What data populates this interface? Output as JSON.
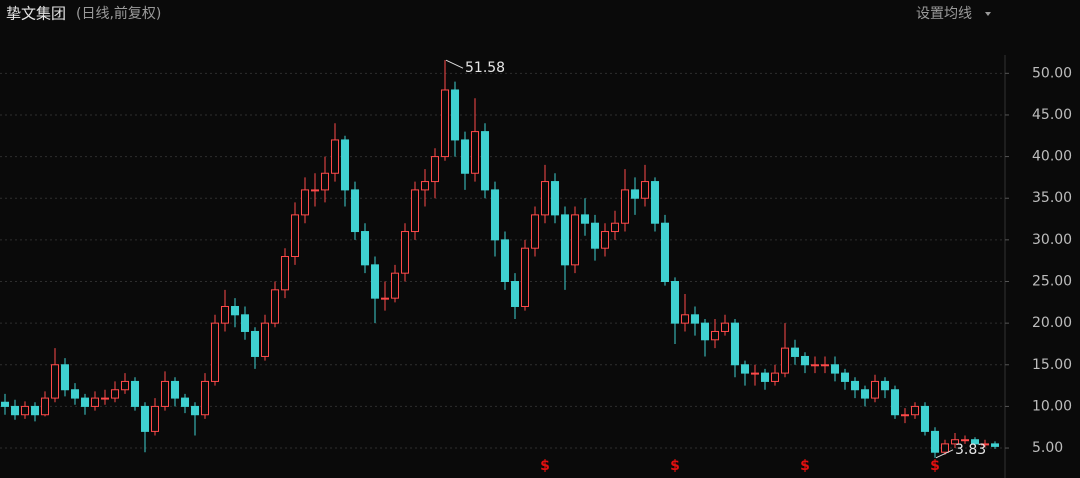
{
  "chart_data": {
    "type": "candlestick",
    "title": "挚文集团",
    "subtitle": "(日线,前复权)",
    "settings_button": "设置均线",
    "up_color": "#ff4a4a",
    "down_color": "#3fd0d0",
    "grid": true,
    "ylim": [
      3,
      52.2
    ],
    "yticks": [
      {
        "value": 5,
        "label": "5.00"
      },
      {
        "value": 10,
        "label": "10.00"
      },
      {
        "value": 15,
        "label": "15.00"
      },
      {
        "value": 20,
        "label": "20.00"
      },
      {
        "value": 25,
        "label": "25.00"
      },
      {
        "value": 30,
        "label": "30.00"
      },
      {
        "value": 35,
        "label": "35.00"
      },
      {
        "value": 40,
        "label": "40.00"
      },
      {
        "value": 45,
        "label": "45.00"
      },
      {
        "value": 50,
        "label": "50.00"
      }
    ],
    "candles": [
      [
        10.5,
        11.5,
        9,
        10
      ],
      [
        10,
        10.8,
        8.4,
        9
      ],
      [
        9,
        10.6,
        8.5,
        10
      ],
      [
        10,
        10.5,
        8.2,
        9
      ],
      [
        9,
        11.8,
        8.8,
        11
      ],
      [
        11,
        17,
        10.5,
        15
      ],
      [
        15,
        15.8,
        11.2,
        12
      ],
      [
        12,
        12.8,
        10.2,
        11
      ],
      [
        11,
        11.5,
        9,
        10
      ],
      [
        10,
        11.8,
        9.5,
        11
      ],
      [
        11,
        12,
        10.2,
        11
      ],
      [
        11,
        13,
        10.5,
        12
      ],
      [
        12,
        14,
        11.5,
        13
      ],
      [
        13,
        13.5,
        9.5,
        10
      ],
      [
        10,
        10.5,
        4.5,
        7
      ],
      [
        7,
        11,
        6.5,
        10
      ],
      [
        10,
        14.2,
        9.5,
        13
      ],
      [
        13,
        13.5,
        10,
        11
      ],
      [
        11,
        11.5,
        9.2,
        10
      ],
      [
        10,
        10.5,
        6.5,
        9
      ],
      [
        9,
        14,
        8.5,
        13
      ],
      [
        13,
        21,
        12.5,
        20
      ],
      [
        20,
        24,
        19,
        22
      ],
      [
        22,
        23,
        19.5,
        21
      ],
      [
        21,
        22,
        18,
        19
      ],
      [
        19,
        19.5,
        14.5,
        16
      ],
      [
        16,
        21,
        15.5,
        20
      ],
      [
        20,
        25,
        19.5,
        24
      ],
      [
        24,
        29,
        23,
        28
      ],
      [
        28,
        34.5,
        27,
        33
      ],
      [
        33,
        37.5,
        32,
        36
      ],
      [
        36,
        38,
        34,
        36
      ],
      [
        36,
        40,
        34.5,
        38
      ],
      [
        38,
        44,
        37,
        42
      ],
      [
        42,
        42.5,
        34,
        36
      ],
      [
        36,
        37,
        30,
        31
      ],
      [
        31,
        32,
        26,
        27
      ],
      [
        27,
        28,
        20,
        23
      ],
      [
        23,
        25,
        21.5,
        23
      ],
      [
        23,
        27,
        22.5,
        26
      ],
      [
        26,
        32,
        25,
        31
      ],
      [
        31,
        37,
        30,
        36
      ],
      [
        36,
        38.5,
        34,
        37
      ],
      [
        37,
        41,
        35,
        40
      ],
      [
        40,
        51.58,
        39.5,
        48
      ],
      [
        48,
        49,
        40,
        42
      ],
      [
        42,
        43,
        36,
        38
      ],
      [
        38,
        47,
        37,
        43
      ],
      [
        43,
        44,
        35,
        36
      ],
      [
        36,
        37,
        28,
        30
      ],
      [
        30,
        31,
        24,
        25
      ],
      [
        25,
        26,
        20.5,
        22
      ],
      [
        22,
        30,
        21.5,
        29
      ],
      [
        29,
        34,
        28,
        33
      ],
      [
        33,
        39,
        32,
        37
      ],
      [
        37,
        38,
        32,
        33
      ],
      [
        33,
        34,
        24,
        27
      ],
      [
        27,
        34,
        26,
        33
      ],
      [
        33,
        35,
        30.5,
        32
      ],
      [
        32,
        33,
        27.5,
        29
      ],
      [
        29,
        32,
        28,
        31
      ],
      [
        31,
        33.5,
        30,
        32
      ],
      [
        32,
        38.5,
        31,
        36
      ],
      [
        36,
        37.5,
        33,
        35
      ],
      [
        35,
        39,
        34,
        37
      ],
      [
        37,
        37.5,
        31,
        32
      ],
      [
        32,
        33,
        24.5,
        25
      ],
      [
        25,
        25.5,
        17.5,
        20
      ],
      [
        20,
        23.5,
        19,
        21
      ],
      [
        21,
        22,
        18.5,
        20
      ],
      [
        20,
        20.5,
        16,
        18
      ],
      [
        18,
        20.5,
        17,
        19
      ],
      [
        19,
        21,
        18.5,
        20
      ],
      [
        20,
        20.5,
        13.5,
        15
      ],
      [
        15,
        15.5,
        12.5,
        14
      ],
      [
        14,
        15,
        12.5,
        14
      ],
      [
        14,
        14.5,
        12,
        13
      ],
      [
        13,
        15,
        12.5,
        14
      ],
      [
        14,
        20,
        13.5,
        17
      ],
      [
        17,
        18,
        15,
        16
      ],
      [
        16,
        16.5,
        14,
        15
      ],
      [
        15,
        16,
        14,
        15
      ],
      [
        15,
        16,
        14,
        15
      ],
      [
        15,
        16,
        13,
        14
      ],
      [
        14,
        14.5,
        12,
        13
      ],
      [
        13,
        13.5,
        11,
        12
      ],
      [
        12,
        12.5,
        10,
        11
      ],
      [
        11,
        13.8,
        10.5,
        13
      ],
      [
        13,
        13.5,
        11,
        12
      ],
      [
        12,
        12.5,
        8.5,
        9
      ],
      [
        9,
        9.8,
        8,
        9
      ],
      [
        9,
        10.5,
        8.5,
        10
      ],
      [
        10,
        10.5,
        6.5,
        7
      ],
      [
        7,
        7.5,
        3.83,
        4.5
      ],
      [
        4.5,
        6,
        4.2,
        5.5
      ],
      [
        5.5,
        6.8,
        5,
        6
      ],
      [
        6,
        6.5,
        5.5,
        6
      ],
      [
        6,
        6.3,
        5.2,
        5.5
      ],
      [
        5.5,
        6,
        5.1,
        5.5
      ],
      [
        5.5,
        5.8,
        4.9,
        5.2
      ]
    ],
    "annotations": [
      {
        "label": "51.58",
        "value": 51.58,
        "at": "high"
      },
      {
        "label": "3.83",
        "value": 3.83,
        "at": "low"
      }
    ],
    "dividend_markers": {
      "label": "$",
      "candles": [
        54,
        67,
        80,
        93
      ]
    }
  }
}
